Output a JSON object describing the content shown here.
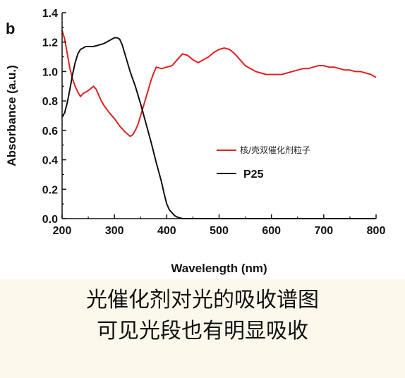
{
  "panel_label": "b",
  "caption": {
    "line1": "光催化剂对光的吸收谱图",
    "line2": "可见光段也有明显吸收"
  },
  "chart_data": {
    "type": "line",
    "title": "",
    "xlabel": "Wavelength (nm)",
    "ylabel": "Absorbance (a.u.)",
    "xlim": [
      200,
      800
    ],
    "ylim": [
      0.0,
      1.4
    ],
    "xticks": [
      "200",
      "300",
      "400",
      "500",
      "600",
      "700",
      "800"
    ],
    "yticks": [
      "0.0",
      "0.2",
      "0.4",
      "0.6",
      "0.8",
      "1.0",
      "1.2",
      "1.4"
    ],
    "grid": false,
    "legend_position": "center-right",
    "series": [
      {
        "name": "核/壳双催化剂粒子",
        "color": "#e02020",
        "x": [
          200,
          205,
          210,
          215,
          220,
          225,
          230,
          235,
          240,
          245,
          250,
          260,
          265,
          270,
          275,
          280,
          290,
          300,
          310,
          320,
          330,
          335,
          340,
          345,
          350,
          360,
          365,
          370,
          375,
          380,
          390,
          400,
          410,
          420,
          430,
          440,
          450,
          460,
          470,
          480,
          490,
          500,
          510,
          520,
          530,
          540,
          550,
          560,
          570,
          580,
          590,
          600,
          610,
          620,
          630,
          640,
          650,
          660,
          670,
          680,
          690,
          700,
          710,
          720,
          730,
          740,
          750,
          760,
          770,
          780,
          790,
          800
        ],
        "y": [
          1.28,
          1.22,
          1.12,
          1.02,
          0.95,
          0.9,
          0.86,
          0.83,
          0.85,
          0.86,
          0.87,
          0.9,
          0.88,
          0.84,
          0.8,
          0.77,
          0.72,
          0.68,
          0.63,
          0.59,
          0.56,
          0.57,
          0.6,
          0.64,
          0.7,
          0.82,
          0.88,
          0.94,
          0.99,
          1.03,
          1.02,
          1.03,
          1.04,
          1.08,
          1.12,
          1.11,
          1.08,
          1.06,
          1.08,
          1.1,
          1.13,
          1.15,
          1.16,
          1.15,
          1.12,
          1.08,
          1.04,
          1.02,
          1.0,
          0.99,
          0.98,
          0.98,
          0.98,
          0.98,
          0.99,
          1.0,
          1.01,
          1.02,
          1.02,
          1.03,
          1.04,
          1.04,
          1.03,
          1.03,
          1.02,
          1.01,
          1.01,
          1.0,
          1.0,
          0.99,
          0.98,
          0.96
        ]
      },
      {
        "name": "P25",
        "color": "#111111",
        "x": [
          200,
          205,
          210,
          215,
          220,
          225,
          230,
          235,
          240,
          245,
          250,
          255,
          260,
          270,
          280,
          290,
          295,
          300,
          305,
          310,
          315,
          320,
          330,
          340,
          350,
          360,
          370,
          380,
          390,
          395,
          400,
          405,
          410,
          415,
          420,
          430,
          440,
          500,
          600,
          700,
          800
        ],
        "y": [
          0.69,
          0.72,
          0.79,
          0.88,
          0.98,
          1.06,
          1.12,
          1.15,
          1.16,
          1.17,
          1.17,
          1.17,
          1.17,
          1.18,
          1.19,
          1.21,
          1.22,
          1.23,
          1.23,
          1.22,
          1.18,
          1.12,
          1.0,
          0.9,
          0.78,
          0.65,
          0.52,
          0.38,
          0.25,
          0.17,
          0.1,
          0.06,
          0.04,
          0.02,
          0.01,
          0.0,
          0.0,
          0.0,
          0.0,
          0.0,
          0.0
        ]
      }
    ]
  }
}
